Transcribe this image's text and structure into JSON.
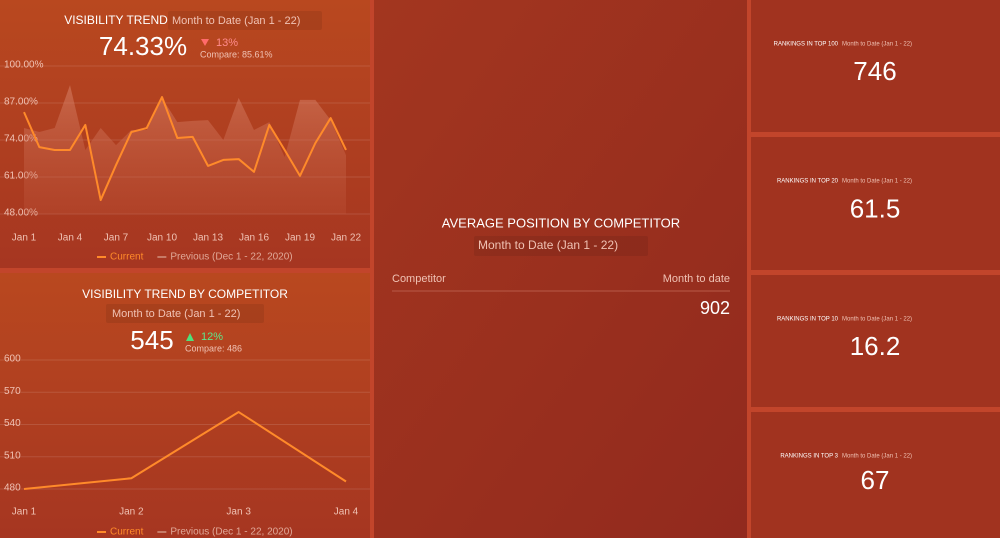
{
  "chart_data": [
    {
      "type": "line",
      "title": "VISIBILITY TREND",
      "subtitle": "Month to Date (Jan 1 - 22)",
      "headline": "74.33%",
      "change": "13%",
      "compare": "Compare: 85.61%",
      "categories": [
        "Jan 1",
        null,
        null,
        "Jan 4",
        null,
        null,
        "Jan 7",
        null,
        null,
        "Jan 10",
        null,
        null,
        "Jan 13",
        null,
        null,
        "Jan 16",
        null,
        null,
        "Jan 19",
        null,
        null,
        "Jan 22"
      ],
      "series": [
        {
          "name": "Current",
          "color": "#ff8a2a",
          "values": [
            83.8,
            71.5,
            70.5,
            70.5,
            79.3,
            52.9,
            65.2,
            76.8,
            78.2,
            89.1,
            74.7,
            75.1,
            64.9,
            67.0,
            67.3,
            62.8,
            79.3,
            70.5,
            61.4,
            72.9,
            81.7,
            70.5
          ]
        },
        {
          "name": "Previous (Dec 1 - 22, 2020)",
          "color": "#c77a66",
          "values": [
            78.2,
            76.8,
            78.2,
            93.3,
            70.5,
            78.2,
            72.2,
            77.5,
            77.5,
            88.8,
            80.3,
            80.7,
            81.0,
            74.0,
            88.8,
            77.5,
            80.3,
            68.0,
            88.1,
            88.1,
            81.0,
            68.7
          ]
        }
      ],
      "ylim": [
        48,
        100
      ],
      "yticks": [
        {
          "value": 48,
          "label": "48.00%"
        },
        {
          "value": 61,
          "label": "61.00%"
        },
        {
          "value": 74,
          "label": "74.00%"
        },
        {
          "value": 87,
          "label": "87.00%"
        },
        {
          "value": 100,
          "label": "100.00%"
        }
      ],
      "grid": true
    },
    {
      "type": "line",
      "title": "VISIBILITY TREND BY COMPETITOR",
      "subtitle": "Month to Date (Jan 1 - 22)",
      "headline": "545",
      "change": "12%",
      "compare": "Compare: 486",
      "categories": [
        "Jan 1",
        "Jan 2",
        "Jan 3",
        "Jan 4"
      ],
      "series": [
        {
          "name": "Current",
          "color": "#ff8a2a",
          "values": [
            480,
            490,
            551.6,
            487
          ]
        },
        {
          "name": "Previous (Dec 1 - 22, 2020)",
          "color": "#c77a66",
          "values": [
            null,
            null,
            null,
            null
          ]
        }
      ],
      "ylim": [
        480,
        600
      ],
      "yticks": [
        480,
        510,
        540,
        570,
        600
      ],
      "grid": true
    }
  ],
  "table": {
    "title": "AVERAGE POSITION BY COMPETITOR",
    "subtitle": "Month to Date (Jan 1 - 22)",
    "columns": [
      "Competitor",
      "Month to date"
    ],
    "rows": [
      {
        "month_to_date": "902"
      }
    ]
  },
  "kpis": [
    {
      "title": "RANKINGS IN TOP 100",
      "subtitle": "Month to Date (Jan 1 - 22)",
      "value": "746"
    },
    {
      "title": "RANKINGS IN TOP 20",
      "subtitle": "Month to Date (Jan 1 - 22)",
      "value": "61.5"
    },
    {
      "title": "RANKINGS IN TOP 10",
      "subtitle": "Month to Date (Jan 1 - 22)",
      "value": "16.2"
    },
    {
      "title": "RANKINGS IN TOP 3",
      "subtitle": "Month to Date (Jan 1 - 22)",
      "value": "67"
    }
  ]
}
